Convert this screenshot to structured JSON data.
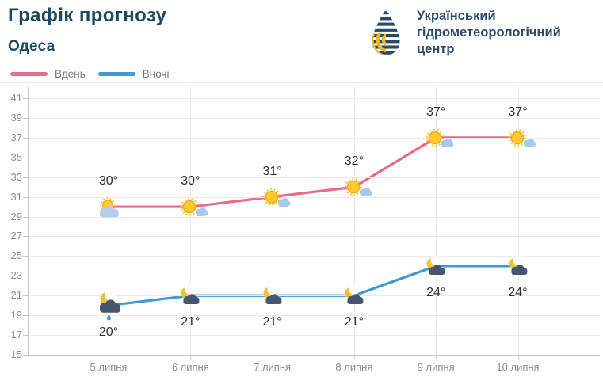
{
  "header": {
    "title": "Графік прогнозу",
    "subtitle": "Одеса"
  },
  "logo": {
    "org_lines": [
      "Український",
      "гідрометеорологічний",
      "центр"
    ],
    "navy": "#2b4a6b",
    "yellow": "#f0b929"
  },
  "legend_position": "top-left",
  "chart_data": {
    "type": "line",
    "categories": [
      "5 липня",
      "6 липня",
      "7 липня",
      "8 липня",
      "9 липня",
      "10 липня"
    ],
    "series": [
      {
        "key": "day",
        "name": "Вдень",
        "color": "#e96b88",
        "values": [
          30,
          30,
          31,
          32,
          37,
          37
        ],
        "labels": [
          "30°",
          "30°",
          "31°",
          "32°",
          "37°",
          "37°"
        ],
        "icons": [
          "sun-behind-cloud",
          "sun-cloud",
          "sun-cloud",
          "sun-cloud",
          "sun-cloud",
          "sun-cloud"
        ],
        "label_side": "above"
      },
      {
        "key": "night",
        "name": "Вночі",
        "color": "#3f9ad6",
        "values": [
          20,
          21,
          21,
          21,
          24,
          24
        ],
        "labels": [
          "20°",
          "21°",
          "21°",
          "21°",
          "24°",
          "24°"
        ],
        "icons": [
          "moon-cloud-rain",
          "moon-cloud",
          "moon-cloud",
          "moon-cloud",
          "moon-cloud",
          "moon-cloud"
        ],
        "label_side": "below"
      }
    ],
    "ylim": [
      15,
      41
    ],
    "yticks": [
      41,
      39,
      37,
      35,
      33,
      31,
      29,
      27,
      25,
      23,
      21,
      19,
      17,
      15
    ],
    "xlabel": "",
    "ylabel": "",
    "grid": true
  }
}
